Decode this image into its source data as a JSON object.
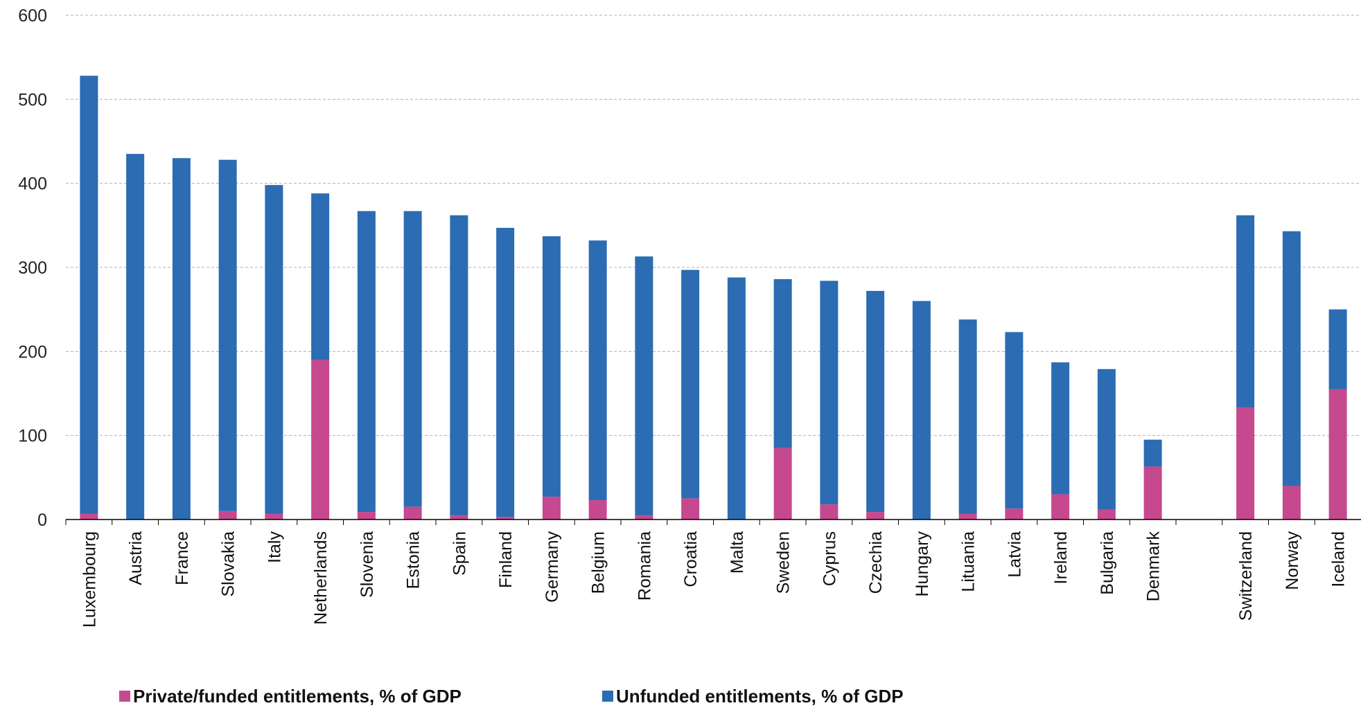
{
  "chart_data": {
    "type": "bar",
    "stacked": true,
    "ylim": [
      0,
      600
    ],
    "yticks": [
      0,
      100,
      200,
      300,
      400,
      500,
      600
    ],
    "grid": true,
    "legend_position": "bottom",
    "categories": [
      "Luxembourg",
      "Austria",
      "France",
      "Slovakia",
      "Italy",
      "Netherlands",
      "Slovenia",
      "Estonia",
      "Spain",
      "Finland",
      "Germany",
      "Belgium",
      "Romania",
      "Croatia",
      "Malta",
      "Sweden",
      "Cyprus",
      "Czechia",
      "Hungary",
      "Lituania",
      "Latvia",
      "Ireland",
      "Bulgaria",
      "Denmark",
      "",
      "Switzerland",
      "Norway",
      "Iceland"
    ],
    "series": [
      {
        "name": "Private/funded entitlements, % of GDP",
        "color": "#C6488F",
        "values": [
          7,
          0,
          0,
          10,
          7,
          190,
          9,
          15,
          5,
          3,
          27,
          23,
          5,
          25,
          0,
          85,
          18,
          9,
          0,
          7,
          13,
          30,
          12,
          63,
          null,
          133,
          40,
          155
        ]
      },
      {
        "name": "Unfunded entitlements, % of GDP",
        "color": "#2B6CB3",
        "values": [
          521,
          435,
          430,
          418,
          391,
          198,
          358,
          352,
          357,
          344,
          310,
          309,
          308,
          272,
          288,
          201,
          266,
          263,
          260,
          231,
          210,
          157,
          167,
          32,
          null,
          229,
          303,
          95
        ]
      }
    ]
  }
}
